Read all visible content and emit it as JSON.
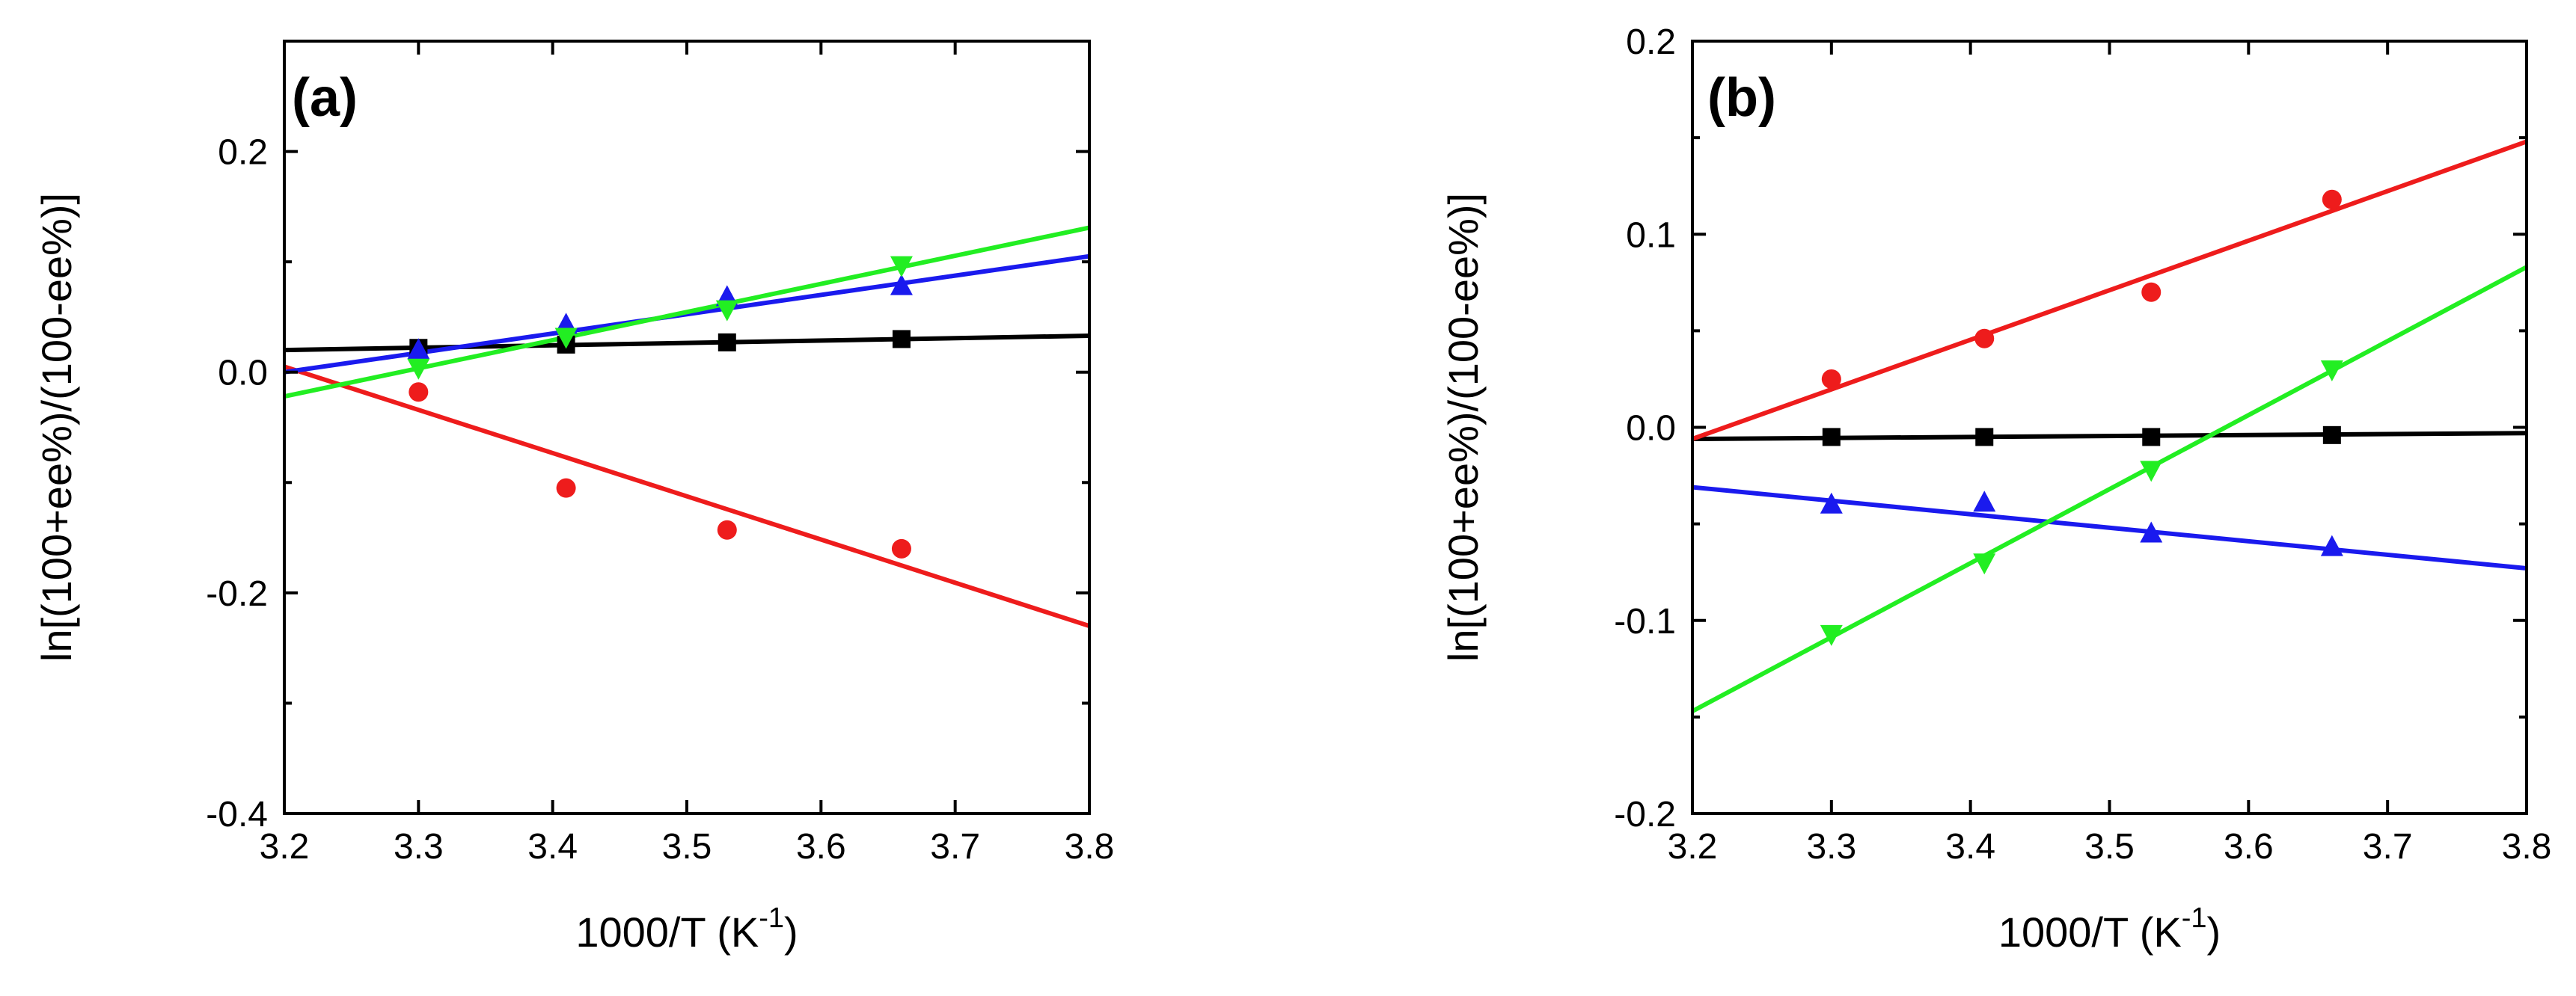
{
  "chart_data": [
    {
      "type": "scatter",
      "panel_label": "(a)",
      "xlabel": "1000/T (K",
      "xlabel_sup": "-1",
      "xlabel_close": ")",
      "ylabel": "ln[(100+ee%)/(100-ee%)]",
      "xlim": [
        3.2,
        3.8
      ],
      "ylim": [
        -0.4,
        0.3
      ],
      "x_ticks": [
        3.2,
        3.3,
        3.4,
        3.5,
        3.6,
        3.7,
        3.8
      ],
      "x_tick_labels": [
        "3.2",
        "3.3",
        "3.4",
        "3.5",
        "3.6",
        "3.7",
        "3.8"
      ],
      "y_ticks": [
        -0.4,
        -0.2,
        0.0,
        0.2
      ],
      "y_tick_labels": [
        "-0.4",
        "-0.2",
        "0.0",
        "0.2"
      ],
      "y_minor_ticks": [
        -0.3,
        -0.1,
        0.1,
        0.3
      ],
      "series": [
        {
          "name": "black",
          "color": "#000000",
          "marker": "square",
          "x": [
            3.3,
            3.41,
            3.53,
            3.66
          ],
          "y": [
            0.022,
            0.025,
            0.027,
            0.03
          ],
          "fit": [
            [
              3.2,
              0.02
            ],
            [
              3.8,
              0.033
            ]
          ]
        },
        {
          "name": "red",
          "color": "#ee1c1c",
          "marker": "circle",
          "x": [
            3.3,
            3.41,
            3.53,
            3.66
          ],
          "y": [
            -0.018,
            -0.105,
            -0.143,
            -0.16
          ],
          "fit": [
            [
              3.2,
              0.005
            ],
            [
              3.8,
              -0.23
            ]
          ]
        },
        {
          "name": "blue",
          "color": "#1a1aee",
          "marker": "triangle-up",
          "x": [
            3.3,
            3.41,
            3.53,
            3.66
          ],
          "y": [
            0.02,
            0.043,
            0.068,
            0.078
          ],
          "fit": [
            [
              3.2,
              0.0
            ],
            [
              3.8,
              0.105
            ]
          ]
        },
        {
          "name": "green",
          "color": "#22ee22",
          "marker": "triangle-down",
          "x": [
            3.3,
            3.41,
            3.53,
            3.66
          ],
          "y": [
            0.004,
            0.032,
            0.057,
            0.097
          ],
          "fit": [
            [
              3.2,
              -0.022
            ],
            [
              3.8,
              0.131
            ]
          ]
        }
      ]
    },
    {
      "type": "scatter",
      "panel_label": "(b)",
      "xlabel": "1000/T (K",
      "xlabel_sup": "-1",
      "xlabel_close": ")",
      "ylabel": "ln[(100+ee%)/(100-ee%)]",
      "xlim": [
        3.2,
        3.8
      ],
      "ylim": [
        -0.2,
        0.2
      ],
      "x_ticks": [
        3.2,
        3.3,
        3.4,
        3.5,
        3.6,
        3.7,
        3.8
      ],
      "x_tick_labels": [
        "3.2",
        "3.3",
        "3.4",
        "3.5",
        "3.6",
        "3.7",
        "3.8"
      ],
      "y_ticks": [
        -0.2,
        -0.1,
        0.0,
        0.1,
        0.2
      ],
      "y_tick_labels": [
        "-0.2",
        "-0.1",
        "0.0",
        "0.1",
        "0.2"
      ],
      "y_minor_ticks": [
        -0.15,
        -0.05,
        0.05,
        0.15
      ],
      "series": [
        {
          "name": "black",
          "color": "#000000",
          "marker": "square",
          "x": [
            3.3,
            3.41,
            3.53,
            3.66
          ],
          "y": [
            -0.005,
            -0.005,
            -0.005,
            -0.004
          ],
          "fit": [
            [
              3.2,
              -0.006
            ],
            [
              3.8,
              -0.003
            ]
          ]
        },
        {
          "name": "red",
          "color": "#ee1c1c",
          "marker": "circle",
          "x": [
            3.3,
            3.41,
            3.53,
            3.66
          ],
          "y": [
            0.025,
            0.046,
            0.07,
            0.118
          ],
          "fit": [
            [
              3.2,
              -0.006
            ],
            [
              3.8,
              0.148
            ]
          ]
        },
        {
          "name": "blue",
          "color": "#1a1aee",
          "marker": "triangle-up",
          "x": [
            3.3,
            3.41,
            3.53,
            3.66
          ],
          "y": [
            -0.04,
            -0.039,
            -0.055,
            -0.062
          ],
          "fit": [
            [
              3.2,
              -0.031
            ],
            [
              3.8,
              -0.073
            ]
          ]
        },
        {
          "name": "green",
          "color": "#22ee22",
          "marker": "triangle-down",
          "x": [
            3.3,
            3.41,
            3.53,
            3.66
          ],
          "y": [
            -0.107,
            -0.07,
            -0.022,
            0.03
          ],
          "fit": [
            [
              3.2,
              -0.147
            ],
            [
              3.8,
              0.083
            ]
          ]
        }
      ]
    }
  ]
}
